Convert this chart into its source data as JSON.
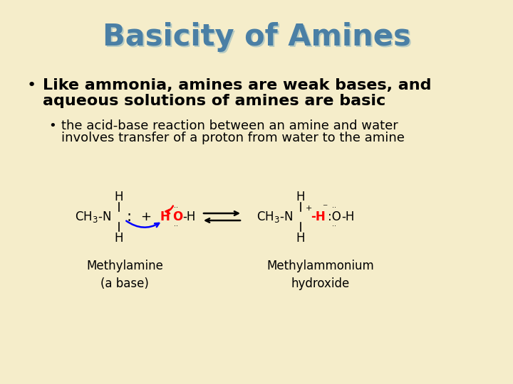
{
  "background_color": "#F5EDCA",
  "title": "Basicity of Amines",
  "title_color": "#4A7FA5",
  "title_fontsize": 30,
  "bullet1_line1": "Like ammonia, amines are weak bases, and",
  "bullet1_line2": "aqueous solutions of amines are basic",
  "bullet1_fontsize": 16,
  "bullet2_line1": "the acid-base reaction between an amine and water",
  "bullet2_line2": "involves transfer of a proton from water to the amine",
  "bullet2_fontsize": 13,
  "text_color": "#000000",
  "label_methylamine": "Methylamine\n(a base)",
  "label_methylammonium": "Methylammonium\nhydroxide",
  "label_fontsize": 12,
  "chem_fontsize": 12
}
